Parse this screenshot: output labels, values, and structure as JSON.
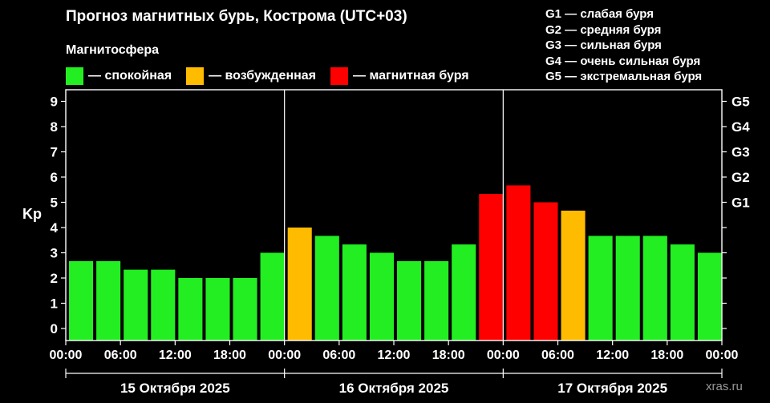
{
  "title": "Прогноз магнитных бурь, Кострома (UTC+03)",
  "legend": {
    "title": "Магнитосфера",
    "items": [
      {
        "label": "— спокойная",
        "color": "#22ee22"
      },
      {
        "label": "— возбужденная",
        "color": "#ffbb00"
      },
      {
        "label": "— магнитная буря",
        "color": "#ff0000"
      }
    ]
  },
  "g_scale": [
    "G1 — слабая буря",
    "G2 — средняя буря",
    "G3 — сильная буря",
    "G4 — очень сильная буря",
    "G5 — экстремальная буря"
  ],
  "site": "xras.ru",
  "chart_data": {
    "type": "bar",
    "ylabel": "Kp",
    "ylim": [
      0,
      9
    ],
    "y_ticks": [
      "0",
      "1",
      "2",
      "3",
      "4",
      "5",
      "6",
      "7",
      "8",
      "9"
    ],
    "g_ticks": [
      {
        "label": "G1",
        "value": 5
      },
      {
        "label": "G2",
        "value": 6
      },
      {
        "label": "G3",
        "value": 7
      },
      {
        "label": "G4",
        "value": 8
      },
      {
        "label": "G5",
        "value": 9
      }
    ],
    "x_tick_labels": [
      "00:00",
      "06:00",
      "12:00",
      "18:00",
      "00:00",
      "06:00",
      "12:00",
      "18:00",
      "00:00",
      "06:00",
      "12:00",
      "18:00",
      "00:00"
    ],
    "days": [
      "15 Октября 2025",
      "16 Октября 2025",
      "17 Октября 2025"
    ],
    "bar_interval_hours": 3,
    "values": [
      2.67,
      2.67,
      2.33,
      2.33,
      2.0,
      2.0,
      2.0,
      3.0,
      4.0,
      3.67,
      3.33,
      3.0,
      2.67,
      2.67,
      3.33,
      5.33,
      5.67,
      5.0,
      4.67,
      3.67,
      3.67,
      3.67,
      3.33,
      3.0
    ],
    "levels": [
      "quiet",
      "quiet",
      "quiet",
      "quiet",
      "quiet",
      "quiet",
      "quiet",
      "quiet",
      "active",
      "quiet",
      "quiet",
      "quiet",
      "quiet",
      "quiet",
      "quiet",
      "storm",
      "storm",
      "storm",
      "active",
      "quiet",
      "quiet",
      "quiet",
      "quiet",
      "quiet"
    ],
    "colors": {
      "quiet": "#22ee22",
      "active": "#ffbb00",
      "storm": "#ff0000"
    },
    "grid": false
  }
}
